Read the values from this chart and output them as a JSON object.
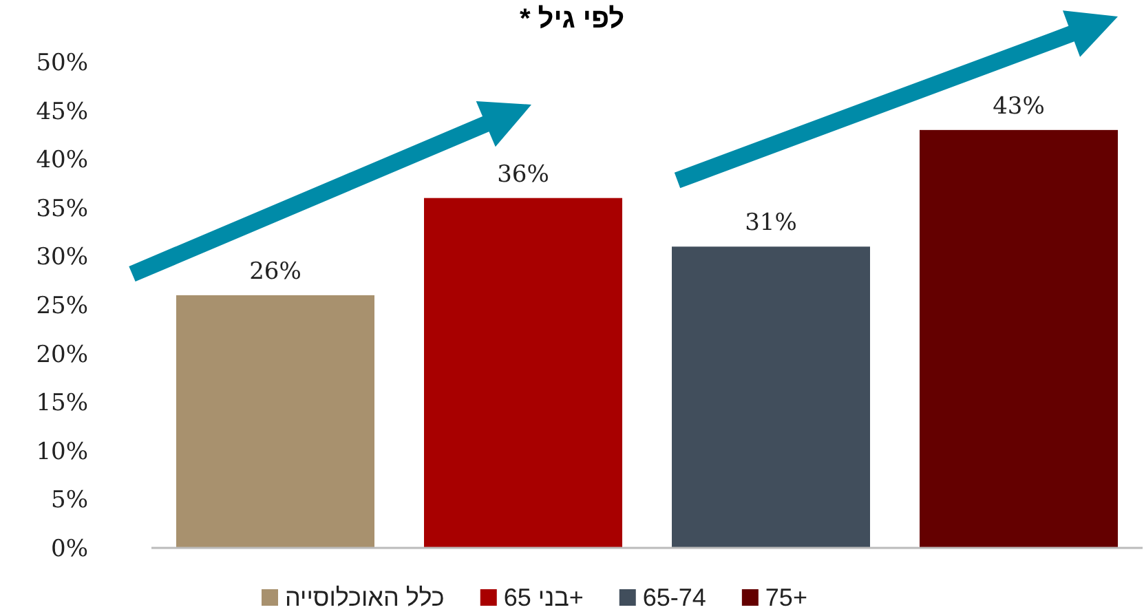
{
  "chart_data": {
    "type": "bar",
    "title": "לפי גיל *",
    "categories": [
      null,
      null,
      null,
      null
    ],
    "stacked": true,
    "series": [
      {
        "name": "כלל האוכלוסייה",
        "color": "#a8916e",
        "values": [
          26,
          null,
          null,
          null
        ],
        "value_labels": [
          "26%",
          null,
          null,
          null
        ]
      },
      {
        "name": "בני 65+",
        "color": "#a80000",
        "values": [
          null,
          36,
          null,
          null
        ],
        "value_labels": [
          null,
          "36%",
          null,
          null
        ]
      },
      {
        "name": "65-74",
        "color": "#414e5c",
        "values": [
          null,
          null,
          31,
          null
        ],
        "value_labels": [
          null,
          null,
          "31%",
          null
        ]
      },
      {
        "name": "75+",
        "color": "#640000",
        "values": [
          null,
          null,
          null,
          43
        ],
        "value_labels": [
          null,
          null,
          null,
          "43%"
        ]
      }
    ],
    "ylim": [
      0,
      50
    ],
    "yticks": [
      {
        "value": 0,
        "label": "0%"
      },
      {
        "value": 5,
        "label": "5%"
      },
      {
        "value": 10,
        "label": "10%"
      },
      {
        "value": 15,
        "label": "15%"
      },
      {
        "value": 20,
        "label": "20%"
      },
      {
        "value": 25,
        "label": "25%"
      },
      {
        "value": 30,
        "label": "30%"
      },
      {
        "value": 35,
        "label": "35%"
      },
      {
        "value": 40,
        "label": "40%"
      },
      {
        "value": 45,
        "label": "45%"
      },
      {
        "value": 50,
        "label": "50%"
      }
    ],
    "legend": "bottom",
    "grid": false
  }
}
